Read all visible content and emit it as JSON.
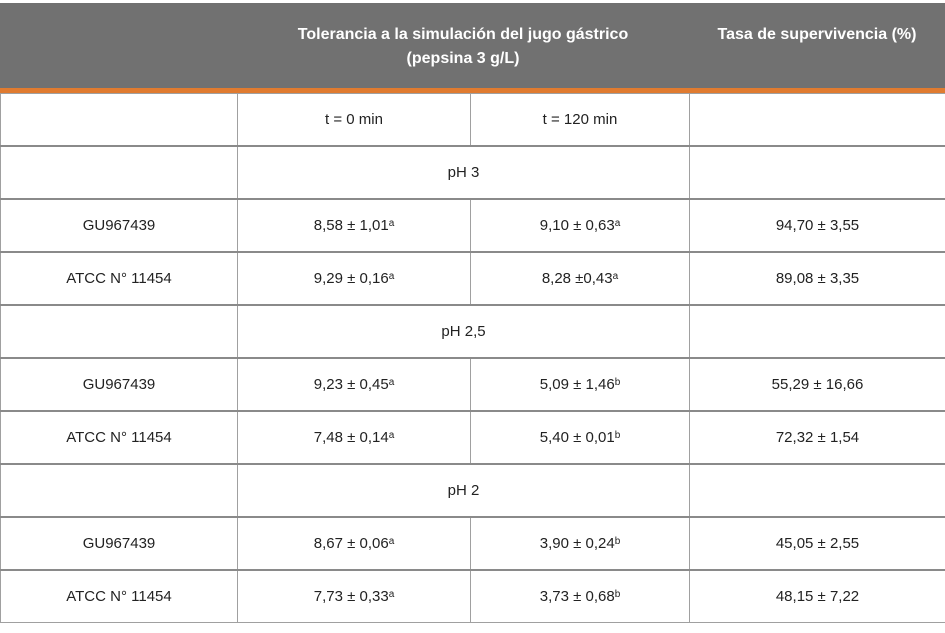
{
  "header": {
    "col_tolerance_line1": "Tolerancia a la simulación del jugo gástrico",
    "col_tolerance_line2": "(pepsina 3 g/L)",
    "col_survival": "Tasa de supervivencia (%)"
  },
  "subheader": {
    "t0": "t = 0 min",
    "t120": "t = 120 min"
  },
  "colors": {
    "header_bg": "#717171",
    "accent": "#e07b30"
  },
  "groups": [
    {
      "label": "pH 3",
      "rows": [
        {
          "strain": "GU967439",
          "t0": "8,58 ± 1,01",
          "t0_sup": "a",
          "t120": "9,10 ± 0,63",
          "t120_sup": "a",
          "survival": "94,70 ± 3,55"
        },
        {
          "strain": "ATCC N° 11454",
          "t0": "9,29 ± 0,16",
          "t0_sup": "a",
          "t120": "8,28 ±0,43",
          "t120_sup": "a",
          "survival": "89,08 ± 3,35"
        }
      ]
    },
    {
      "label": "pH 2,5",
      "rows": [
        {
          "strain": "GU967439",
          "t0": "9,23 ± 0,45",
          "t0_sup": "a",
          "t120": "5,09 ± 1,46",
          "t120_sup": "b",
          "survival": "55,29 ± 16,66"
        },
        {
          "strain": "ATCC N° 11454",
          "t0": "7,48 ± 0,14",
          "t0_sup": "a",
          "t120": "5,40 ± 0,01",
          "t120_sup": "b",
          "survival": "72,32 ± 1,54"
        }
      ]
    },
    {
      "label": "pH 2",
      "rows": [
        {
          "strain": "GU967439",
          "t0": "8,67 ± 0,06",
          "t0_sup": "a",
          "t120": "3,90 ± 0,24",
          "t120_sup": "b",
          "survival": "45,05 ± 2,55"
        },
        {
          "strain": "ATCC N° 11454",
          "t0": "7,73 ± 0,33",
          "t0_sup": "a",
          "t120": "3,73 ± 0,68",
          "t120_sup": "b",
          "survival": "48,15 ± 7,22"
        }
      ]
    }
  ]
}
